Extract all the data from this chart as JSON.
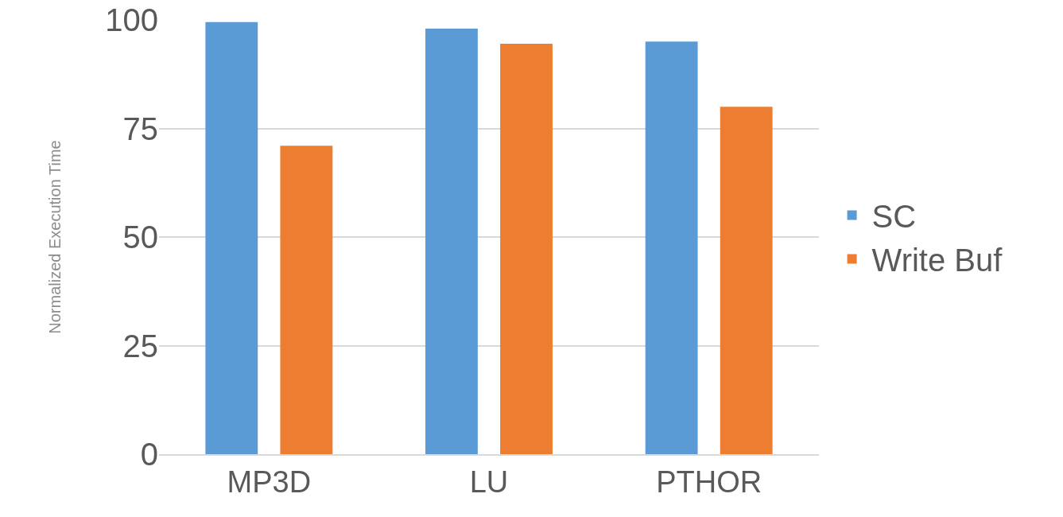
{
  "chart_data": {
    "type": "bar",
    "ylabel": "Normalized Execution Time",
    "categories": [
      "MP3D",
      "LU",
      "PTHOR"
    ],
    "series": [
      {
        "name": "SC",
        "color": "#5b9bd5",
        "values": [
          99.5,
          98,
          95
        ]
      },
      {
        "name": "Write Buf",
        "color": "#ed7d31",
        "values": [
          71,
          94.5,
          80
        ]
      }
    ],
    "ylim": [
      0,
      100
    ],
    "yticks": [
      0,
      25,
      50,
      75,
      100
    ],
    "grid": "y",
    "legend": "right"
  }
}
